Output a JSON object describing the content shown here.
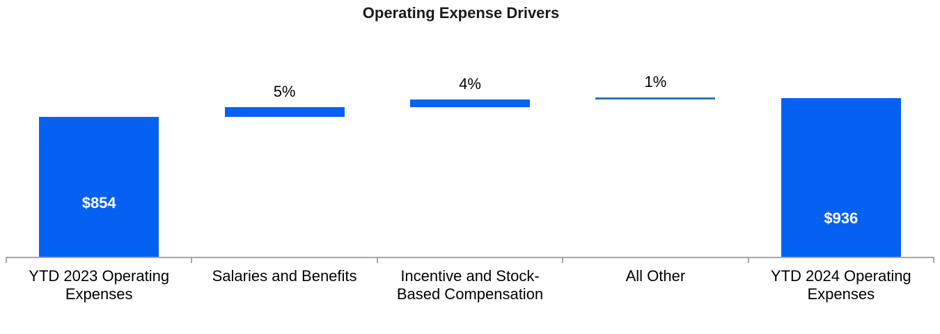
{
  "page": {
    "title": "Operating Expense Drivers"
  },
  "colors": {
    "bar_fill": "#0561F2",
    "thin_bar_fill": "#2E74B5",
    "axis_line": "#A6A6A6",
    "title_text": "#1A1A1A",
    "category_text": "#000000",
    "pct_label_text": "#000000",
    "inside_label_text": "#FFFFFF",
    "background": "#FFFFFF"
  },
  "chart_data": {
    "type": "bar",
    "subtype": "waterfall",
    "title": "Operating Expense Drivers",
    "categories": [
      "YTD 2023 Operating Expenses",
      "Salaries and Benefits",
      "Incentive and Stock-Based Compensation",
      "All Other",
      "YTD 2024 Operating Expenses"
    ],
    "series": [
      {
        "category": "YTD 2023 Operating Expenses",
        "category_lines": [
          "YTD 2023 Operating",
          "Expenses"
        ],
        "kind": "total",
        "value": 854,
        "label": "$854",
        "label_position": "inside"
      },
      {
        "category": "Salaries and Benefits",
        "category_lines": [
          "Salaries and Benefits"
        ],
        "kind": "increase",
        "pct_of_ytd2023": 5,
        "label": "5%",
        "label_position": "above"
      },
      {
        "category": "Incentive and Stock-Based Compensation",
        "category_lines": [
          "Incentive and Stock-",
          "Based Compensation"
        ],
        "kind": "increase",
        "pct_of_ytd2023": 4,
        "label": "4%",
        "label_position": "above"
      },
      {
        "category": "All Other",
        "category_lines": [
          "All Other"
        ],
        "kind": "increase",
        "pct_of_ytd2023": 1,
        "label": "1%",
        "label_position": "above",
        "appearance": "thin-line"
      },
      {
        "category": "YTD 2024 Operating Expenses",
        "category_lines": [
          "YTD 2024 Operating",
          "Expenses"
        ],
        "kind": "total",
        "value": 936,
        "label": "$936",
        "label_position": "inside"
      }
    ],
    "axes": {
      "x_axis_line": true,
      "x_axis_ticks": true,
      "y_axis_visible": false,
      "gridlines": false,
      "y_implied_min": 225
    },
    "legend": "none"
  }
}
